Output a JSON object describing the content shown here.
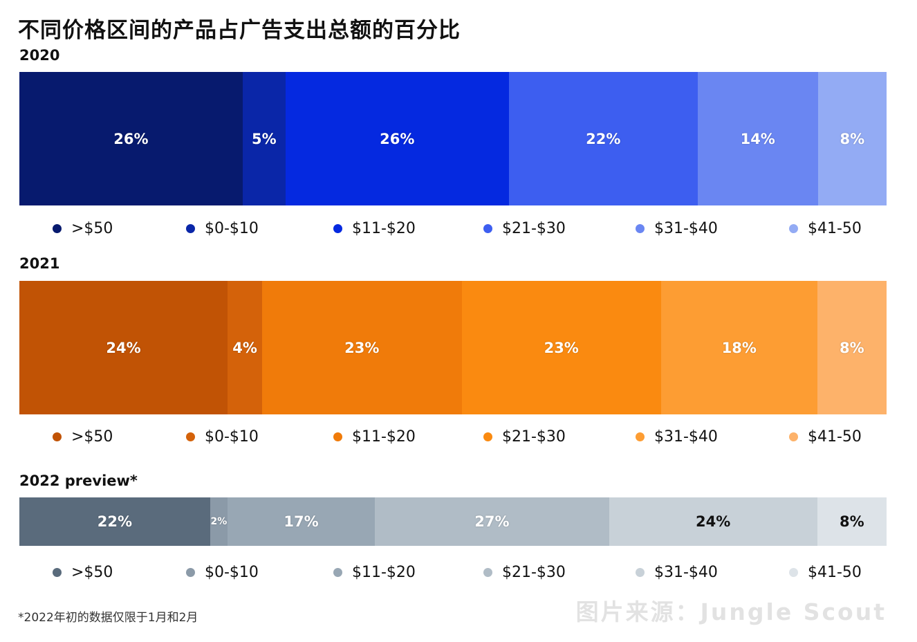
{
  "title": "不同价格区间的产品占广告支出总额的百分比",
  "footnote": "*2022年初的数据仅限于1月和2月",
  "watermark": "图片来源：Jungle Scout",
  "chart_data": [
    {
      "type": "bar",
      "title": "2020",
      "stacked": "100%",
      "orientation": "horizontal",
      "categories": [
        ">$50",
        "$0-$10",
        "$11-$20",
        "$21-$30",
        "$31-$40",
        "$41-50"
      ],
      "values": [
        26,
        5,
        26,
        22,
        14,
        8
      ],
      "labels": [
        "26%",
        "5%",
        "26%",
        "22%",
        "14%",
        "8%"
      ],
      "colors": [
        "#071a6e",
        "#0a26a8",
        "#0529e0",
        "#3d5ef0",
        "#6a86f2",
        "#93abf4"
      ],
      "legend_position": "bottom"
    },
    {
      "type": "bar",
      "title": "2021",
      "stacked": "100%",
      "orientation": "horizontal",
      "categories": [
        ">$50",
        "$0-$10",
        "$11-$20",
        "$21-$30",
        "$31-$40",
        "$41-50"
      ],
      "values": [
        24,
        4,
        23,
        23,
        18,
        8
      ],
      "labels": [
        "24%",
        "4%",
        "23%",
        "23%",
        "18%",
        "8%"
      ],
      "colors": [
        "#c15305",
        "#d4620a",
        "#f07b0a",
        "#fa8a10",
        "#fd9d33",
        "#fdb26a"
      ],
      "legend_position": "bottom"
    },
    {
      "type": "bar",
      "title": "2022 preview*",
      "stacked": "100%",
      "orientation": "horizontal",
      "categories": [
        ">$50",
        "$0-$10",
        "$11-$20",
        "$21-$30",
        "$31-$40",
        "$41-50"
      ],
      "values": [
        22,
        2,
        17,
        27,
        24,
        8
      ],
      "labels": [
        "22%",
        "2%",
        "17%",
        "27%",
        "24%",
        "8%"
      ],
      "colors": [
        "#5a6b7c",
        "#8b9aa8",
        "#98a7b4",
        "#b0bcc6",
        "#c8d1d8",
        "#dde3e8"
      ],
      "label_colors": [
        "#ffffff",
        "#ffffff",
        "#ffffff",
        "#ffffff",
        "#111111",
        "#111111"
      ],
      "legend_position": "bottom"
    }
  ]
}
